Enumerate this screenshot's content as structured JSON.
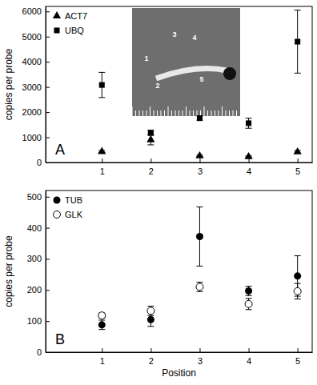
{
  "chart_data": [
    {
      "type": "scatter",
      "title": "A",
      "y_label": "copies per probe",
      "x": [
        1,
        2,
        3,
        4,
        5
      ],
      "xlim": [
        -0.15,
        5.3
      ],
      "xticks": [
        1,
        2,
        3,
        4,
        5
      ],
      "ylim": [
        0,
        6200
      ],
      "yticks": [
        0,
        1000,
        2000,
        3000,
        4000,
        5000,
        6000
      ],
      "legend": "upper left",
      "annotations": [
        "1",
        "2",
        "3",
        "4",
        "5"
      ],
      "series": [
        {
          "name": "ACT7",
          "color": "#000000",
          "marker": "triangle",
          "values": [
            430,
            900,
            260,
            230,
            420
          ],
          "errors": [
            40,
            200,
            30,
            30,
            50
          ]
        },
        {
          "name": "UBQ",
          "color": "#000000",
          "marker": "square",
          "values": [
            3080,
            1180,
            1760,
            1560,
            4800
          ],
          "errors": [
            500,
            100,
            80,
            200,
            1250
          ]
        }
      ]
    },
    {
      "type": "scatter",
      "title": "B",
      "x_label": "Position",
      "y_label": "copies per probe",
      "x": [
        1,
        2,
        3,
        4,
        5
      ],
      "xlim": [
        -0.15,
        5.3
      ],
      "xticks": [
        1,
        2,
        3,
        4,
        5
      ],
      "ylim": [
        0,
        520
      ],
      "yticks": [
        0,
        100,
        200,
        300,
        400,
        500
      ],
      "legend": "upper left",
      "series": [
        {
          "name": "TUB",
          "color": "#000000",
          "marker": "circle",
          "values": [
            88,
            105,
            372,
            197,
            245
          ],
          "errors": [
            15,
            22,
            95,
            15,
            65
          ]
        },
        {
          "name": "GLK",
          "color": "#000000",
          "marker": "circle-open",
          "values": [
            118,
            133,
            210,
            155,
            196
          ],
          "errors": [
            8,
            15,
            15,
            18,
            25
          ]
        }
      ]
    }
  ]
}
